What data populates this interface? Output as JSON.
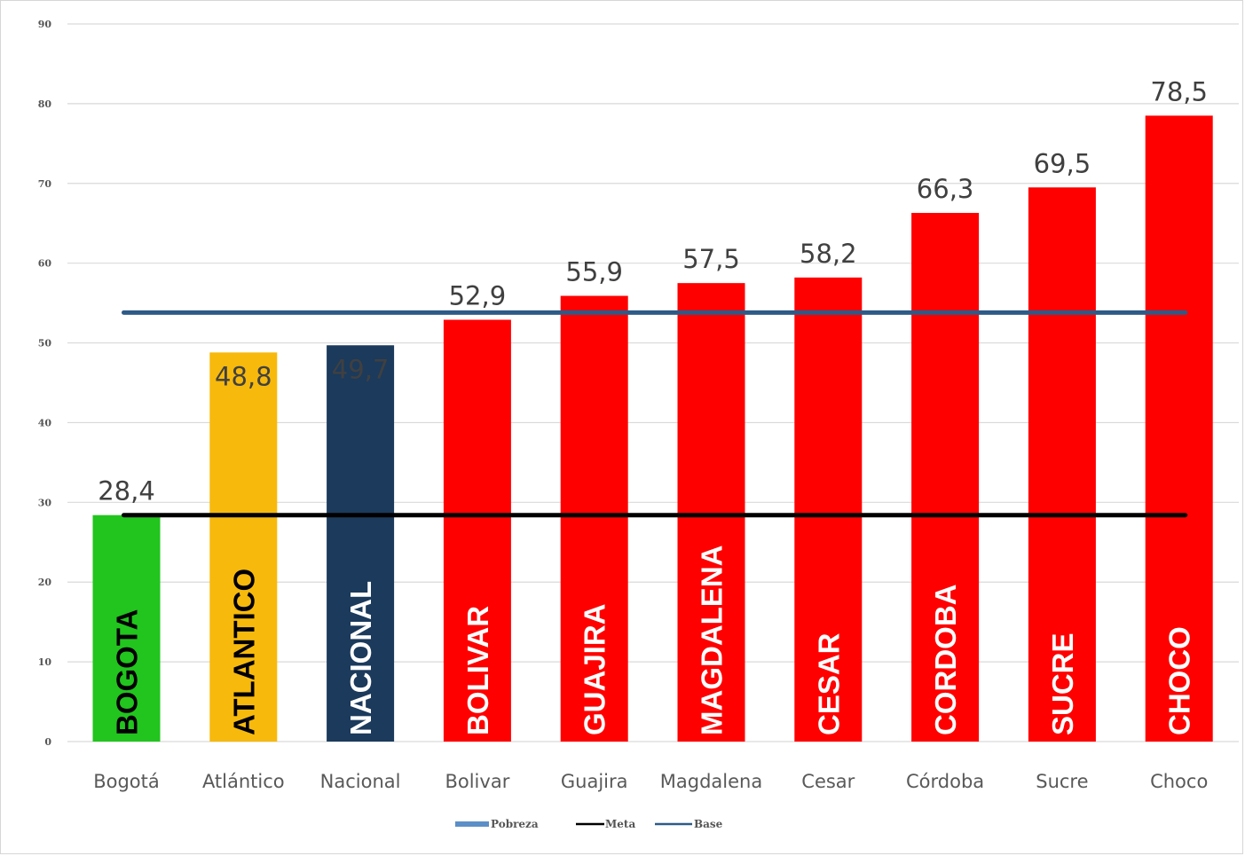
{
  "chart_data": {
    "type": "bar",
    "categories": [
      "Bogotá",
      "Atlántico",
      "Nacional",
      "Bolivar",
      "Guajira",
      "Magdalena",
      "Cesar",
      "Córdoba",
      "Sucre",
      "Choco"
    ],
    "values": [
      28.4,
      48.8,
      49.7,
      52.9,
      55.9,
      57.5,
      58.2,
      66.3,
      69.5,
      78.5
    ],
    "value_labels": [
      "28,4",
      "48,8",
      "49,7",
      "52,9",
      "55,9",
      "57,5",
      "58,2",
      "66,3",
      "69,5",
      "78,5"
    ],
    "bar_labels": [
      "BOGOTA",
      "ATLANTICO",
      "NACIONAL",
      "BOLIVAR",
      "GUAJIRA",
      "MAGDALENA",
      "CESAR",
      "CORDOBA",
      "SUCRE",
      "CHOCO"
    ],
    "bar_colors": [
      "#22c41e",
      "#f7b90c",
      "#1b3a5c",
      "#ff0000",
      "#ff0000",
      "#ff0000",
      "#ff0000",
      "#ff0000",
      "#ff0000",
      "#ff0000"
    ],
    "bar_label_colors": [
      "#000000",
      "#000000",
      "#ffffff",
      "#ffffff",
      "#ffffff",
      "#ffffff",
      "#ffffff",
      "#ffffff",
      "#ffffff",
      "#ffffff"
    ],
    "ylim": [
      0,
      90
    ],
    "yticks": [
      0,
      10,
      20,
      30,
      40,
      50,
      60,
      70,
      80,
      90
    ],
    "grid": true,
    "title": "",
    "xlabel": "",
    "ylabel": "",
    "lines": [
      {
        "name": "Meta",
        "value": 28.4,
        "color": "#000000"
      },
      {
        "name": "Base",
        "value": 53.8,
        "color": "#2e5a87"
      }
    ],
    "legend": {
      "placement": "bottom-center",
      "entries": [
        {
          "name": "Pobreza",
          "color": "#5b8fc7",
          "style": "bar"
        },
        {
          "name": "Meta",
          "color": "#000000",
          "style": "line"
        },
        {
          "name": "Base",
          "color": "#2e5a87",
          "style": "line"
        }
      ]
    }
  }
}
